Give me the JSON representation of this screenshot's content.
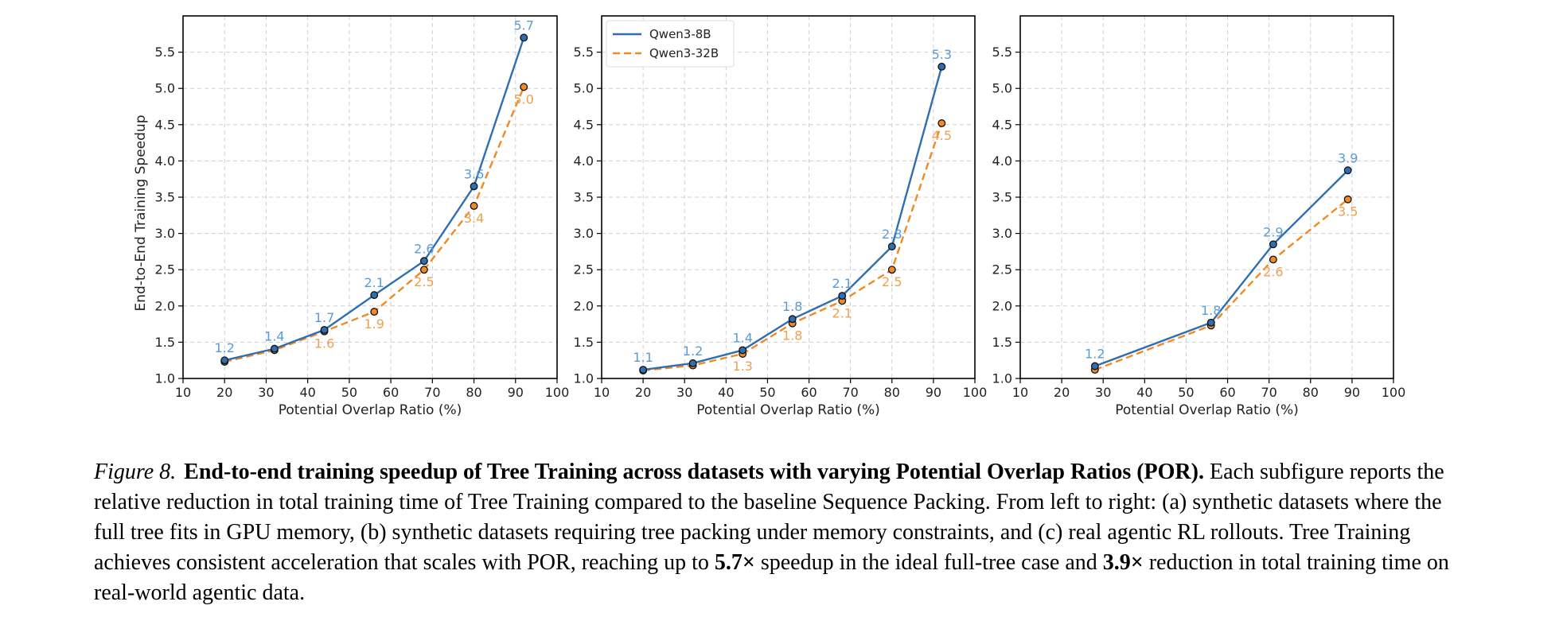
{
  "chart_data": [
    {
      "type": "line",
      "panel": "a",
      "x_values": [
        20,
        32,
        44,
        56,
        68,
        80,
        92
      ],
      "series": [
        {
          "name": "Qwen3-8B",
          "values": [
            1.25,
            1.41,
            1.67,
            2.15,
            2.62,
            3.65,
            5.7
          ],
          "labels": [
            "1.2",
            "1.4",
            "1.7",
            "2.1",
            "2.6",
            "3.6",
            "5.7"
          ],
          "color": "#2f6fb0",
          "style": "solid"
        },
        {
          "name": "Qwen3-32B",
          "values": [
            1.23,
            1.39,
            1.65,
            1.92,
            2.5,
            3.38,
            5.02
          ],
          "labels": [
            "",
            "",
            "1.6",
            "1.9",
            "2.5",
            "3.4",
            "5.0"
          ],
          "color": "#f08a24",
          "style": "dashed"
        }
      ],
      "xlim": [
        10,
        100
      ],
      "ylim": [
        1.0,
        6.0
      ],
      "xticks": [
        "10",
        "20",
        "30",
        "40",
        "50",
        "60",
        "70",
        "80",
        "90",
        "100"
      ],
      "yticks": [
        "1.0",
        "1.5",
        "2.0",
        "2.5",
        "3.0",
        "3.5",
        "4.0",
        "4.5",
        "5.0",
        "5.5"
      ],
      "xlabel": "Potential Overlap Ratio (%)",
      "ylabel": "End-to-End Training Speedup",
      "legend": null
    },
    {
      "type": "line",
      "panel": "b",
      "x_values": [
        20,
        32,
        44,
        56,
        68,
        80,
        92
      ],
      "series": [
        {
          "name": "Qwen3-8B",
          "values": [
            1.12,
            1.21,
            1.39,
            1.82,
            2.14,
            2.82,
            5.3
          ],
          "labels": [
            "1.1",
            "1.2",
            "1.4",
            "1.8",
            "2.1",
            "2.8",
            "5.3"
          ],
          "color": "#2f6fb0",
          "style": "solid"
        },
        {
          "name": "Qwen3-32B",
          "values": [
            1.11,
            1.18,
            1.34,
            1.76,
            2.07,
            2.5,
            4.52
          ],
          "labels": [
            "",
            "",
            "1.3",
            "1.8",
            "2.1",
            "2.5",
            "4.5"
          ],
          "color": "#f08a24",
          "style": "dashed"
        }
      ],
      "xlim": [
        10,
        100
      ],
      "ylim": [
        1.0,
        6.0
      ],
      "xticks": [
        "10",
        "20",
        "30",
        "40",
        "50",
        "60",
        "70",
        "80",
        "90",
        "100"
      ],
      "yticks": [
        "1.0",
        "1.5",
        "2.0",
        "2.5",
        "3.0",
        "3.5",
        "4.0",
        "4.5",
        "5.0",
        "5.5"
      ],
      "xlabel": "Potential Overlap Ratio (%)",
      "ylabel": "",
      "legend": "top-left"
    },
    {
      "type": "line",
      "panel": "c",
      "x_values": [
        28,
        56,
        71,
        89
      ],
      "series": [
        {
          "name": "Qwen3-8B",
          "values": [
            1.17,
            1.77,
            2.85,
            3.87
          ],
          "labels": [
            "1.2",
            "1.8",
            "2.9",
            "3.9"
          ],
          "color": "#2f6fb0",
          "style": "solid"
        },
        {
          "name": "Qwen3-32B",
          "values": [
            1.12,
            1.73,
            2.64,
            3.47
          ],
          "labels": [
            "",
            "",
            "2.6",
            "3.5"
          ],
          "color": "#f08a24",
          "style": "dashed"
        }
      ],
      "xlim": [
        10,
        100
      ],
      "ylim": [
        1.0,
        6.0
      ],
      "xticks": [
        "10",
        "20",
        "30",
        "40",
        "50",
        "60",
        "70",
        "80",
        "90",
        "100"
      ],
      "yticks": [
        "1.0",
        "1.5",
        "2.0",
        "2.5",
        "3.0",
        "3.5",
        "4.0",
        "4.5",
        "5.0",
        "5.5"
      ],
      "xlabel": "Potential Overlap Ratio (%)",
      "ylabel": "",
      "legend": null
    }
  ],
  "caption": {
    "label": "Figure 8.",
    "title": "End-to-end training speedup of Tree Training across datasets with varying Potential Overlap Ratios (POR).",
    "body_1": " Each subfigure reports the relative reduction in total training time of Tree Training compared to the baseline Sequence Packing. From left to right: (a) synthetic datasets where the full tree fits in GPU memory, (b) synthetic datasets requiring tree packing under memory constraints, and (c) real agentic RL rollouts. Tree Training achieves consistent acceleration that scales with POR, reaching up to ",
    "bold_1": "5.7×",
    "body_2": " speedup in the ideal full-tree case and ",
    "bold_2": "3.9×",
    "body_3": " reduction in total training time on real-world agentic data."
  }
}
